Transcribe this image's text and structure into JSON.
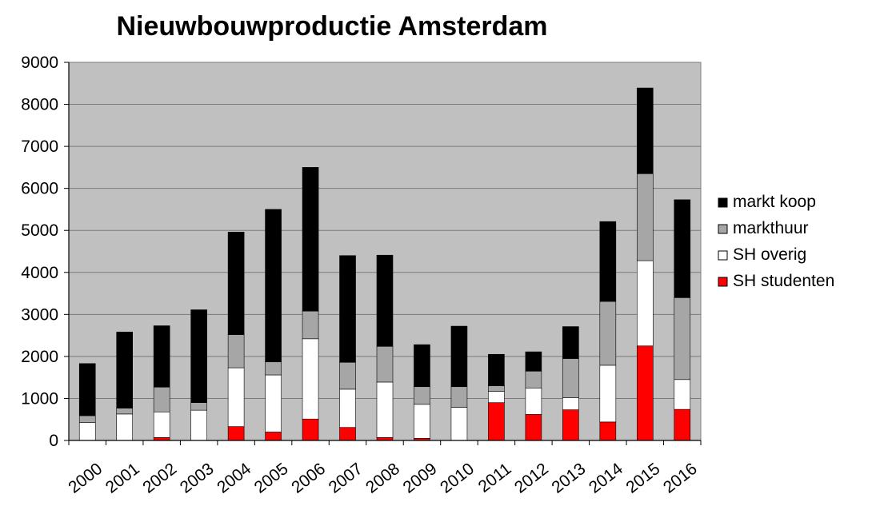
{
  "chart_data": {
    "type": "bar",
    "stacked": true,
    "title": "Nieuwbouwproductie Amsterdam",
    "xlabel": "",
    "ylabel": "",
    "ylim": [
      0,
      9000
    ],
    "yticks": [
      0,
      1000,
      2000,
      3000,
      4000,
      5000,
      6000,
      7000,
      8000,
      9000
    ],
    "grid": true,
    "legend_position": "right",
    "plot_background": "#c0c0c0",
    "categories": [
      "2000",
      "2001",
      "2002",
      "2003",
      "2004",
      "2005",
      "2006",
      "2007",
      "2008",
      "2009",
      "2010",
      "2011",
      "2012",
      "2013",
      "2014",
      "2015",
      "2016"
    ],
    "series": [
      {
        "name": "SH studenten",
        "color": "#ff0000",
        "values": [
          0,
          0,
          70,
          0,
          330,
          200,
          510,
          310,
          70,
          50,
          0,
          900,
          620,
          730,
          440,
          2250,
          740
        ]
      },
      {
        "name": "SH overig",
        "color": "#ffffff",
        "values": [
          430,
          630,
          610,
          720,
          1400,
          1360,
          1910,
          910,
          1320,
          810,
          790,
          270,
          630,
          290,
          1350,
          2030,
          710
        ]
      },
      {
        "name": "markthuur",
        "color": "#a6a6a6",
        "values": [
          160,
          140,
          590,
          180,
          790,
          310,
          660,
          640,
          850,
          420,
          490,
          130,
          400,
          930,
          1520,
          2070,
          1950
        ]
      },
      {
        "name": "markt koop",
        "color": "#000000",
        "values": [
          1240,
          1810,
          1460,
          2210,
          2440,
          3630,
          3420,
          2540,
          2170,
          1000,
          1440,
          750,
          460,
          760,
          1900,
          2040,
          2330
        ]
      }
    ]
  }
}
